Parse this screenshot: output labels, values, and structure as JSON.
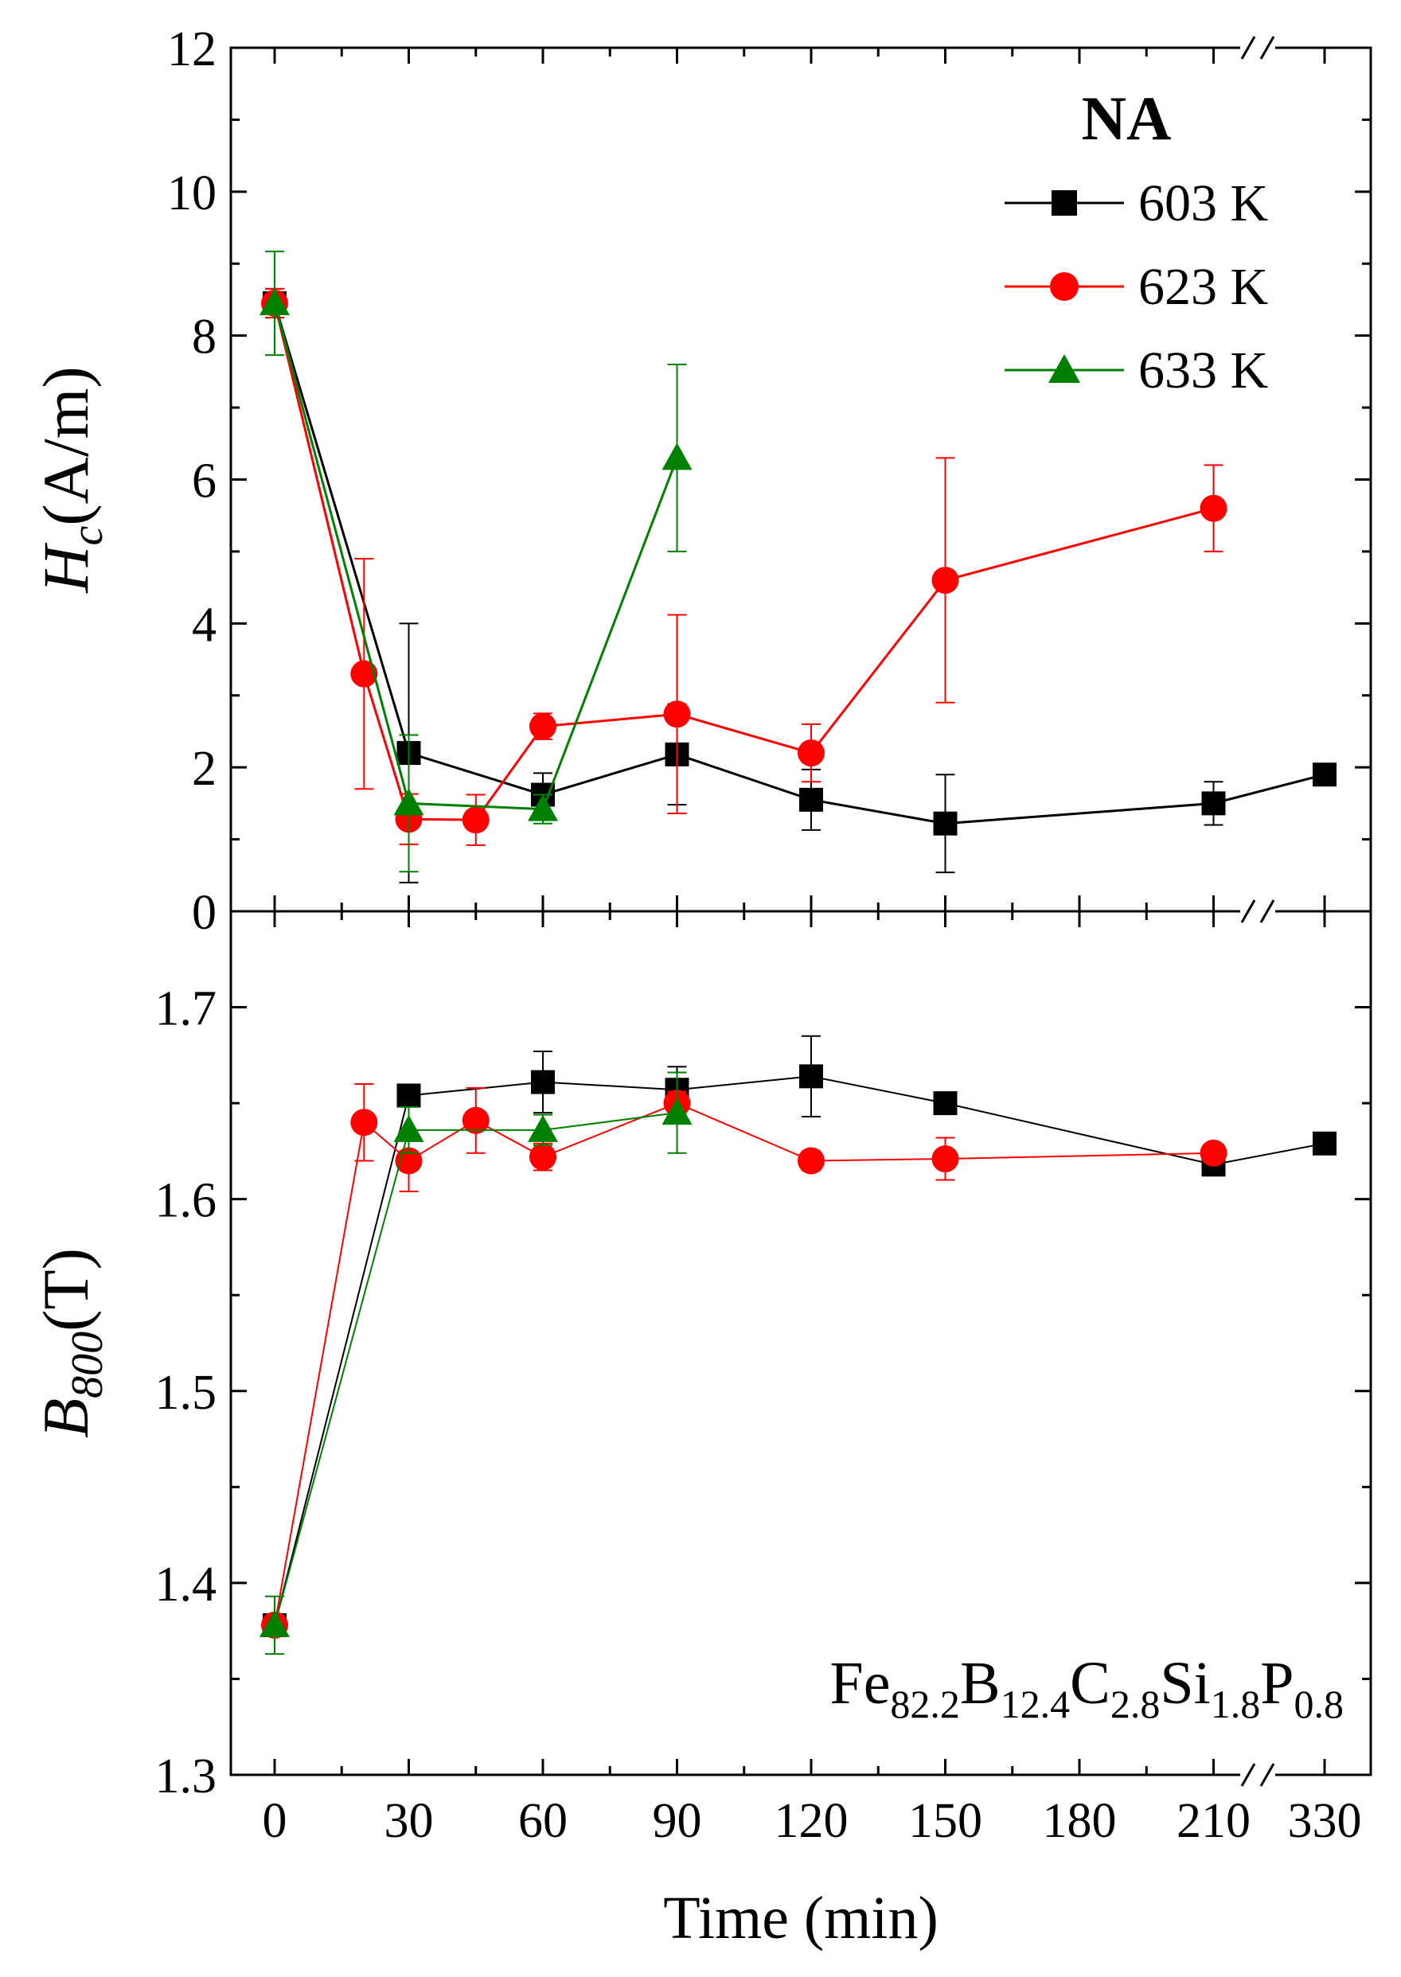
{
  "chart_data": [
    {
      "type": "line",
      "panel": "top",
      "ylabel": {
        "main": "H",
        "sub": "c",
        "rest": "(A/m)"
      },
      "ylim": [
        0,
        12
      ],
      "yticks": [
        "0",
        "2",
        "4",
        "6",
        "8",
        "10",
        "12"
      ],
      "yminor": [
        1,
        3,
        5,
        7,
        9,
        11
      ],
      "legend": {
        "title": "NA",
        "position": "top-right",
        "entries": [
          "603 K",
          "623 K",
          "633 K"
        ]
      },
      "series": [
        {
          "name": "603 K",
          "color": "#000000",
          "marker": "square",
          "points": [
            {
              "x": 0,
              "y": 8.45,
              "err": 0.2
            },
            {
              "x": 30,
              "y": 2.2,
              "err": 1.8
            },
            {
              "x": 60,
              "y": 1.62,
              "err": 0.3
            },
            {
              "x": 90,
              "y": 2.18,
              "err": 0.7
            },
            {
              "x": 120,
              "y": 1.55,
              "err": 0.42
            },
            {
              "x": 150,
              "y": 1.22,
              "err": 0.68
            },
            {
              "x": 210,
              "y": 1.5,
              "err": 0.3
            },
            {
              "x": 330,
              "y": 1.9,
              "err": 0
            }
          ]
        },
        {
          "name": "623 K",
          "color": "#ff0000",
          "marker": "circle",
          "points": [
            {
              "x": 0,
              "y": 8.45,
              "err": 0.2
            },
            {
              "x": 20,
              "y": 3.3,
              "err": 1.6
            },
            {
              "x": 30,
              "y": 1.28,
              "err": 0.35
            },
            {
              "x": 45,
              "y": 1.27,
              "err": 0.35
            },
            {
              "x": 60,
              "y": 2.57,
              "err": 0.18
            },
            {
              "x": 90,
              "y": 2.74,
              "err": 1.38
            },
            {
              "x": 120,
              "y": 2.2,
              "err": 0.4
            },
            {
              "x": 150,
              "y": 4.6,
              "err": 1.7
            },
            {
              "x": 210,
              "y": 5.6,
              "err": 0.6
            }
          ]
        },
        {
          "name": "633 K",
          "color": "#008000",
          "marker": "triangle",
          "points": [
            {
              "x": 0,
              "y": 8.45,
              "err": 0.72
            },
            {
              "x": 30,
              "y": 1.5,
              "err": 0.95
            },
            {
              "x": 60,
              "y": 1.42,
              "err": 0.2
            },
            {
              "x": 90,
              "y": 6.3,
              "err": 1.3
            }
          ]
        }
      ]
    },
    {
      "type": "line",
      "panel": "bottom",
      "ylabel": {
        "main": "B",
        "sub": "800",
        "rest": "(T)"
      },
      "ylim": [
        1.3,
        1.75
      ],
      "yticks": [
        "1.3",
        "1.4",
        "1.5",
        "1.6",
        "1.7"
      ],
      "yminor": [
        1.35,
        1.45,
        1.55,
        1.65
      ],
      "xlabel": "Time (min)",
      "xticks": [
        "0",
        "30",
        "60",
        "90",
        "120",
        "150",
        "180",
        "210",
        "330"
      ],
      "xtick_values": [
        0,
        30,
        60,
        90,
        120,
        150,
        180,
        210,
        330
      ],
      "xminor": [
        15,
        45,
        75,
        105,
        135,
        165,
        195
      ],
      "axis_break": "between 210 and 330",
      "annotation": {
        "parts": [
          "Fe",
          "82.2",
          "B",
          "12.4",
          "C",
          "2.8",
          "Si",
          "1.8",
          "P",
          "0.8"
        ]
      },
      "series": [
        {
          "name": "603 K",
          "color": "#000000",
          "marker": "square",
          "points": [
            {
              "x": 0,
              "y": 1.378,
              "err": 0.005
            },
            {
              "x": 30,
              "y": 1.654,
              "err": 0.004
            },
            {
              "x": 60,
              "y": 1.661,
              "err": 0.016
            },
            {
              "x": 90,
              "y": 1.657,
              "err": 0.012
            },
            {
              "x": 120,
              "y": 1.664,
              "err": 0.021
            },
            {
              "x": 150,
              "y": 1.65,
              "err": 0
            },
            {
              "x": 210,
              "y": 1.618,
              "err": 0
            },
            {
              "x": 330,
              "y": 1.629,
              "err": 0
            }
          ]
        },
        {
          "name": "623 K",
          "color": "#ff0000",
          "marker": "circle",
          "points": [
            {
              "x": 0,
              "y": 1.378,
              "err": 0.005
            },
            {
              "x": 20,
              "y": 1.64,
              "err": 0.02
            },
            {
              "x": 30,
              "y": 1.62,
              "err": 0.016
            },
            {
              "x": 45,
              "y": 1.641,
              "err": 0.017
            },
            {
              "x": 60,
              "y": 1.622,
              "err": 0.007
            },
            {
              "x": 90,
              "y": 1.65,
              "err": 0.006
            },
            {
              "x": 120,
              "y": 1.62,
              "err": 0.005
            },
            {
              "x": 150,
              "y": 1.621,
              "err": 0.011
            },
            {
              "x": 210,
              "y": 1.624,
              "err": 0
            }
          ]
        },
        {
          "name": "633 K",
          "color": "#008000",
          "marker": "triangle",
          "points": [
            {
              "x": 0,
              "y": 1.378,
              "err": 0.015
            },
            {
              "x": 30,
              "y": 1.636,
              "err": 0.012
            },
            {
              "x": 60,
              "y": 1.636,
              "err": 0.008
            },
            {
              "x": 90,
              "y": 1.645,
              "err": 0.021
            }
          ]
        }
      ]
    }
  ]
}
